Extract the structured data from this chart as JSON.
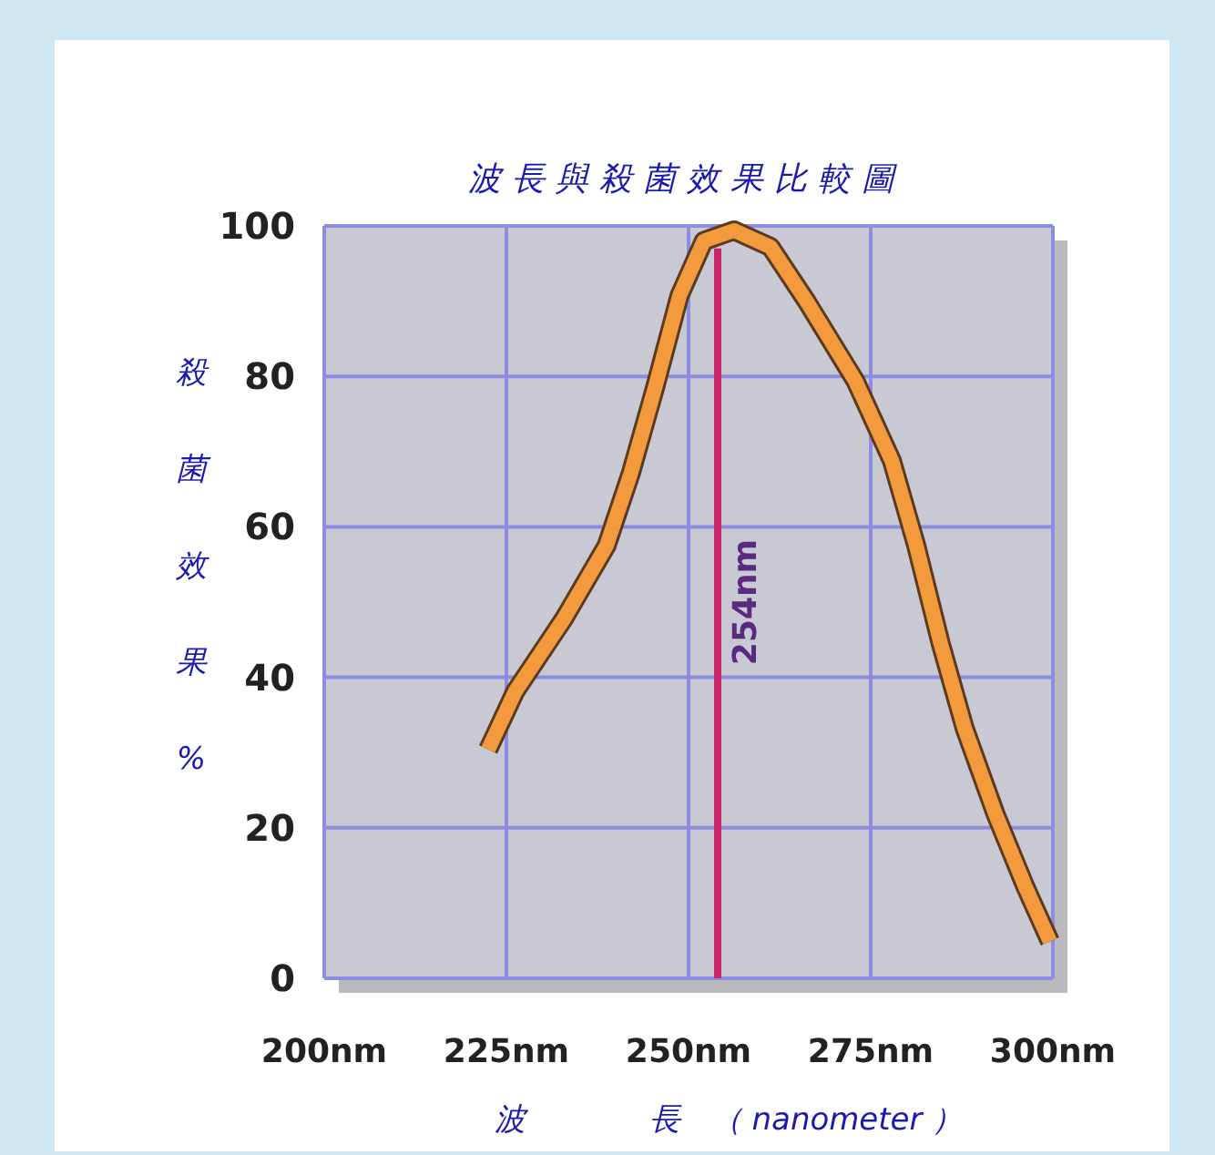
{
  "chart_data": {
    "type": "line",
    "title": "波長與殺菌效果比較圖",
    "xlabel": "波　　　　長　（ nanometer ）",
    "ylabel": "殺菌效果%",
    "x": [
      222.5,
      226.2,
      232.9,
      238.75,
      242.1,
      245.4,
      248.75,
      252.1,
      256.25,
      261.25,
      266.25,
      272.9,
      277.9,
      281.25,
      284.6,
      287.9,
      292.1,
      296.25,
      299.6
    ],
    "series": [
      {
        "color": "#f39a3c",
        "values": [
          30.4,
          38.1,
          47.8,
          57.5,
          67.2,
          78.5,
          90.7,
          98,
          99.4,
          97.2,
          89.9,
          79.4,
          68.8,
          57.5,
          44.5,
          33.2,
          21.9,
          12.1,
          4.9
        ]
      }
    ],
    "xlim": [
      200,
      300
    ],
    "ylim": [
      0,
      100
    ],
    "xticks": [
      {
        "value": 200,
        "label": "200nm"
      },
      {
        "value": 225,
        "label": "225nm"
      },
      {
        "value": 250,
        "label": "250nm"
      },
      {
        "value": 275,
        "label": "275nm"
      },
      {
        "value": 300,
        "label": "300nm"
      }
    ],
    "yticks": [
      0,
      20,
      40,
      60,
      80,
      100
    ],
    "ref_lines": [
      {
        "axis": "x",
        "value": 254,
        "label": "254nm",
        "color": "#c8286a",
        "line_style": "solid"
      }
    ],
    "grid": true,
    "marker": "none",
    "line_style": "solid"
  }
}
